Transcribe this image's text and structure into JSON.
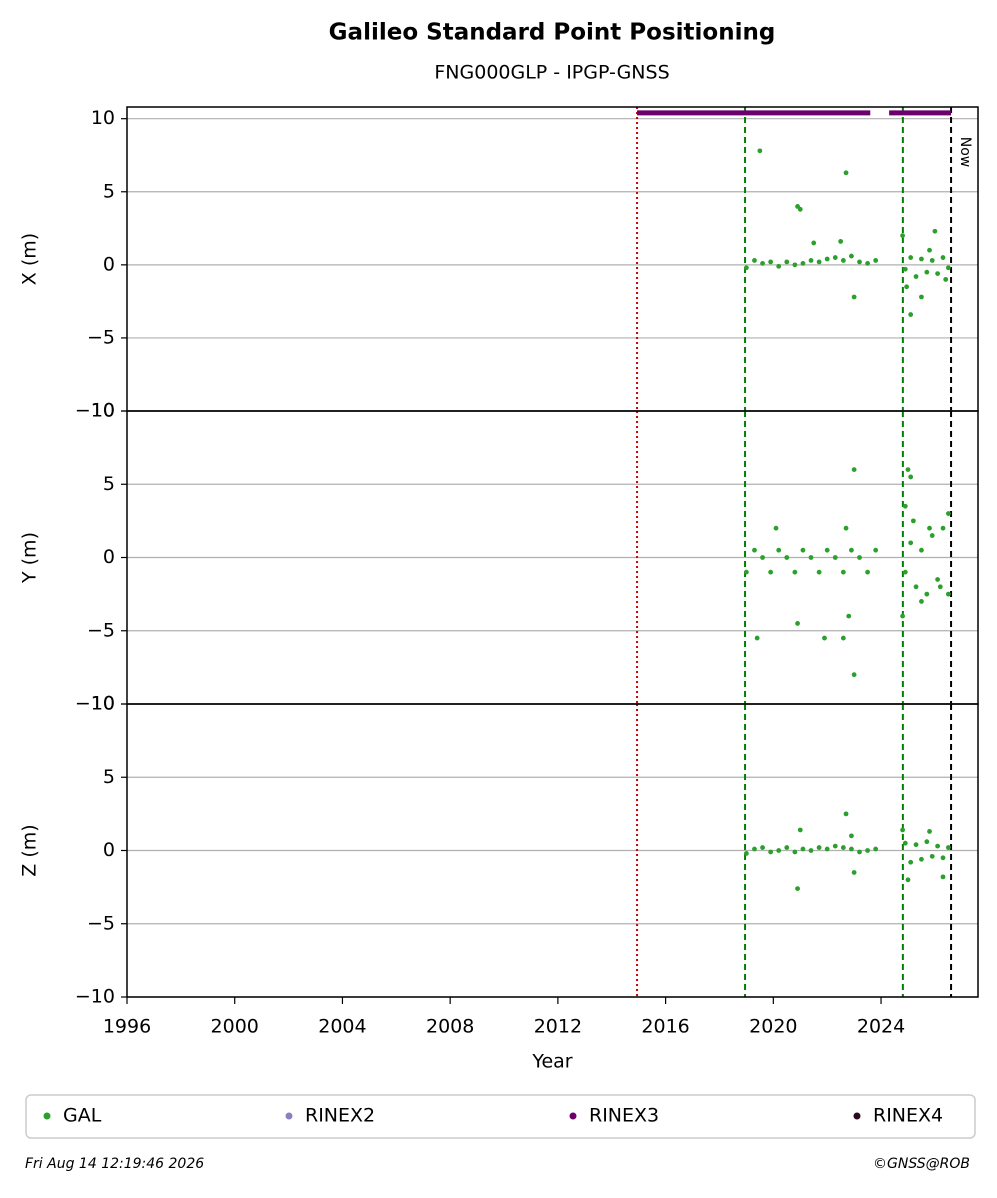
{
  "header": {
    "title": "Galileo Standard Point Positioning",
    "subtitle": "FNG000GLP - IPGP-GNSS"
  },
  "vlines": [
    {
      "value": 2014.94,
      "color": "#cc0000",
      "style": "dotted"
    },
    {
      "value": 2018.95,
      "color": "#008000",
      "style": "dashed"
    },
    {
      "value": 2024.81,
      "color": "#008000",
      "style": "dashed"
    },
    {
      "value": 2026.6,
      "color": "#000000",
      "style": "dashed"
    }
  ],
  "now_label": "Now",
  "rinex_bar": {
    "segments": [
      [
        2014.94,
        2023.6
      ],
      [
        2024.3,
        2026.6
      ]
    ],
    "y": 10.4,
    "color": "#6b006b"
  },
  "legend": [
    {
      "name": "GAL",
      "color": "#2ca02c"
    },
    {
      "name": "RINEX2",
      "color": "#8c7fbf"
    },
    {
      "name": "RINEX3",
      "color": "#6b006b"
    },
    {
      "name": "RINEX4",
      "color": "#2a0a1e"
    }
  ],
  "footer": {
    "date": "Fri Aug 14 12:19:46 2026",
    "credit": "©GNSS@ROB"
  },
  "chart_data": [
    {
      "type": "scatter",
      "ylabel": "X (m)",
      "xlim": [
        1996,
        2027.6
      ],
      "ylim": [
        -10,
        10.8
      ],
      "yticks": [
        {
          "value": -10,
          "label": "−10"
        },
        {
          "value": -5,
          "label": "−5"
        },
        0,
        5,
        10
      ],
      "grid": true,
      "series": [
        {
          "name": "GAL",
          "color": "#2ca02c",
          "x": [
            2019.0,
            2019.3,
            2019.6,
            2019.9,
            2020.2,
            2020.5,
            2020.8,
            2021.1,
            2021.4,
            2021.7,
            2022.0,
            2022.3,
            2022.6,
            2022.9,
            2023.2,
            2023.5,
            2023.8,
            2024.9,
            2025.1,
            2025.3,
            2025.5,
            2025.7,
            2025.9,
            2026.1,
            2026.3,
            2026.5,
            2019.5,
            2020.9,
            2021.0,
            2022.7,
            2021.5,
            2022.5,
            2023.0,
            2025.1,
            2024.8,
            2026.0,
            2025.5,
            2024.95,
            2025.8,
            2026.4
          ],
          "values": [
            -0.2,
            0.3,
            0.1,
            0.2,
            -0.1,
            0.2,
            0.0,
            0.1,
            0.3,
            0.2,
            0.4,
            0.5,
            0.3,
            0.6,
            0.2,
            0.1,
            0.3,
            -0.3,
            0.5,
            -0.8,
            0.4,
            -0.5,
            0.3,
            -0.6,
            0.5,
            -0.2,
            7.8,
            4.0,
            3.8,
            6.3,
            1.5,
            1.6,
            -2.2,
            -3.4,
            2.0,
            2.3,
            -2.2,
            -1.5,
            1.0,
            -1.0
          ]
        }
      ]
    },
    {
      "type": "scatter",
      "ylabel": "Y (m)",
      "xlim": [
        1996,
        2027.6
      ],
      "ylim": [
        -10,
        10
      ],
      "yticks": [
        {
          "value": -10,
          "label": "−10"
        },
        {
          "value": -5,
          "label": "−5"
        },
        0,
        5,
        10
      ],
      "grid": true,
      "series": [
        {
          "name": "GAL",
          "color": "#2ca02c",
          "x": [
            2019.0,
            2019.3,
            2019.6,
            2019.9,
            2020.2,
            2020.5,
            2020.8,
            2021.1,
            2021.4,
            2021.7,
            2022.0,
            2022.3,
            2022.6,
            2022.9,
            2023.2,
            2023.5,
            2023.8,
            2024.9,
            2025.1,
            2025.3,
            2025.5,
            2025.7,
            2025.9,
            2026.1,
            2026.3,
            2026.5,
            2019.4,
            2020.1,
            2020.9,
            2021.9,
            2022.6,
            2022.7,
            2022.8,
            2023.0,
            2023.0,
            2024.8,
            2025.0,
            2025.1,
            2024.9,
            2025.2,
            2026.5,
            2025.5,
            2025.8,
            2026.2
          ],
          "values": [
            -1.0,
            0.5,
            0.0,
            -1.0,
            0.5,
            0.0,
            -1.0,
            0.5,
            0.0,
            -1.0,
            0.5,
            0.0,
            -1.0,
            0.5,
            0.0,
            -1.0,
            0.5,
            -1.0,
            1.0,
            -2.0,
            0.5,
            -2.5,
            1.5,
            -1.5,
            2.0,
            -2.5,
            -5.5,
            2.0,
            -4.5,
            -5.5,
            -5.5,
            2.0,
            -4.0,
            6.0,
            -8.0,
            -4.0,
            6.0,
            5.5,
            3.5,
            2.5,
            3.0,
            -3.0,
            2.0,
            -2.0
          ]
        }
      ]
    },
    {
      "type": "scatter",
      "ylabel": "Z (m)",
      "xlabel": "Year",
      "xlim": [
        1996,
        2027.6
      ],
      "ylim": [
        -10,
        10
      ],
      "yticks": [
        {
          "value": -10,
          "label": "−10"
        },
        {
          "value": -5,
          "label": "−5"
        },
        0,
        5,
        10
      ],
      "grid": true,
      "xticks": [
        1996,
        2000,
        2004,
        2008,
        2012,
        2016,
        2020,
        2024
      ],
      "series": [
        {
          "name": "GAL",
          "color": "#2ca02c",
          "x": [
            2019.0,
            2019.3,
            2019.6,
            2019.9,
            2020.2,
            2020.5,
            2020.8,
            2021.1,
            2021.4,
            2021.7,
            2022.0,
            2022.3,
            2022.6,
            2022.9,
            2023.2,
            2023.5,
            2023.8,
            2024.9,
            2025.1,
            2025.3,
            2025.5,
            2025.7,
            2025.9,
            2026.1,
            2026.3,
            2026.5,
            2020.9,
            2021.0,
            2022.7,
            2022.9,
            2023.0,
            2025.0,
            2024.8,
            2026.3,
            2025.8
          ],
          "values": [
            -0.2,
            0.1,
            0.2,
            -0.1,
            0.0,
            0.2,
            -0.1,
            0.1,
            0.0,
            0.2,
            0.1,
            0.3,
            0.2,
            0.1,
            -0.1,
            0.0,
            0.1,
            0.5,
            -0.8,
            0.4,
            -0.6,
            0.6,
            -0.4,
            0.3,
            -0.5,
            0.2,
            -2.6,
            1.4,
            2.5,
            1.0,
            -1.5,
            -2.0,
            1.4,
            -1.8,
            1.3
          ]
        }
      ]
    }
  ]
}
